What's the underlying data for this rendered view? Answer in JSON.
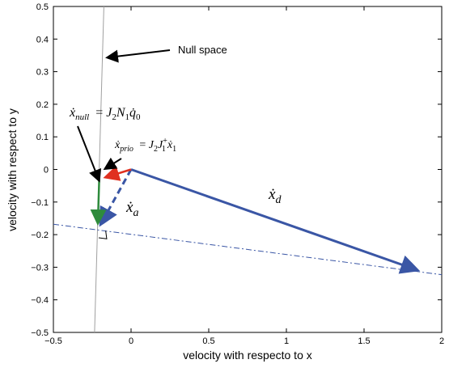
{
  "chart_data": {
    "type": "line",
    "xlabel": "velocity with respecto to x",
    "ylabel": "velocity with respect to y",
    "xlim": [
      -0.5,
      2
    ],
    "ylim": [
      -0.5,
      0.5
    ],
    "x_ticks": [
      "−0.5",
      "0",
      "0.5",
      "1",
      "1.5",
      "2"
    ],
    "y_ticks": [
      "0.5",
      "0.4",
      "0.3",
      "0.2",
      "0.1",
      "0",
      "−0.1",
      "−0.2",
      "−0.3",
      "−0.4",
      "−0.5"
    ],
    "grid": false,
    "lines": [
      {
        "name": "null-space-line",
        "color": "#a0a0a0",
        "style": "solid",
        "points": [
          [
            -0.235,
            -0.5
          ],
          [
            -0.175,
            0.5
          ]
        ]
      },
      {
        "name": "projection-line",
        "color": "#3a56a5",
        "style": "dashdot",
        "points": [
          [
            -0.5,
            -0.168
          ],
          [
            2.0,
            -0.323
          ]
        ]
      }
    ],
    "vectors": [
      {
        "name": "x_d",
        "color": "#3a56a5",
        "style": "solid",
        "from": [
          0,
          0
        ],
        "to": [
          1.88,
          -0.315
        ]
      },
      {
        "name": "x_a",
        "color": "#3a56a5",
        "style": "dashed",
        "from": [
          0,
          0
        ],
        "to": [
          -0.215,
          -0.185
        ]
      },
      {
        "name": "x_prio",
        "color": "#e03020",
        "style": "solid",
        "from": [
          0,
          0
        ],
        "to": [
          -0.205,
          -0.03
        ]
      },
      {
        "name": "x_null",
        "color": "#2e8b3c",
        "style": "solid",
        "from": [
          -0.205,
          -0.03
        ],
        "to": [
          -0.215,
          -0.185
        ]
      }
    ],
    "annotations": [
      {
        "id": "null_space",
        "text": "Null space"
      }
    ],
    "math_labels": {
      "x_null": {
        "lhs": "ẋ",
        "lhs_sub": "null",
        "rhs": "= J",
        "rhs_parts": [
          "2",
          "N",
          "1",
          "q̇",
          "0"
        ]
      },
      "x_prio": {
        "lhs": "ẋ",
        "lhs_sub": "prio"
      },
      "x_a": {
        "base": "ẋ",
        "sub": "a"
      },
      "x_d": {
        "base": "ẋ",
        "sub": "d"
      }
    }
  }
}
